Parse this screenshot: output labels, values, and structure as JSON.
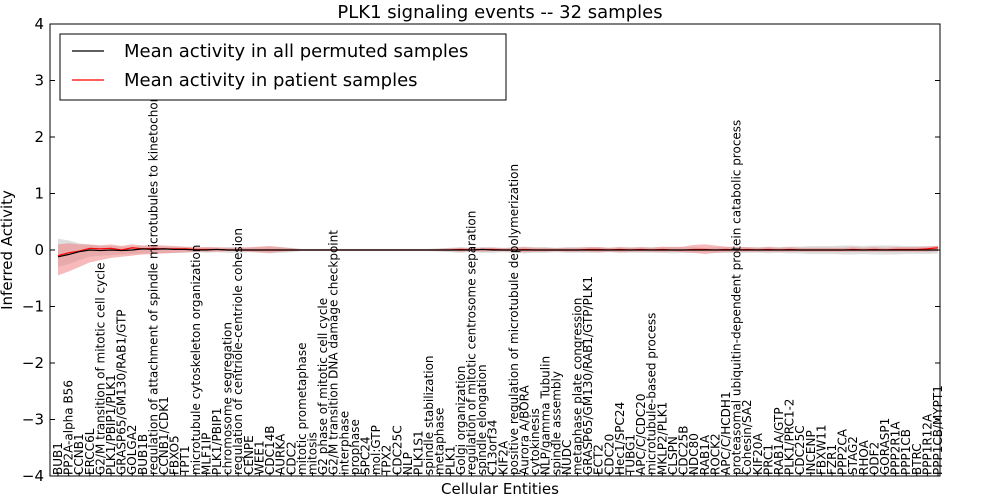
{
  "chart_data": {
    "type": "line",
    "title": "PLK1 signaling events -- 32 samples",
    "xlabel": "Cellular Entities",
    "ylabel": "Inferred Activity",
    "ylim": [
      -4,
      4
    ],
    "yticks": [
      "4",
      "3",
      "2",
      "1",
      "0",
      "−1",
      "−2",
      "−3",
      "−4"
    ],
    "ytick_values": [
      4,
      3,
      2,
      1,
      0,
      -1,
      -2,
      -3,
      -4
    ],
    "grid": false,
    "legend_position": "top-left",
    "categories": [
      "BUB1",
      "PP2A-alpha B56",
      "CCNB1",
      "ERCC6L",
      "G2/M transition of mitotic cell cycle",
      "PLK1/PBIP1/PLK1",
      "GRASP65/GM130/RAB1/GTP",
      "GOLGA2",
      "BUB1B",
      "regulation of attachment of spindle microtubules to kinetochore",
      "CCNB1/CDK1",
      "FBXO5",
      "TPT1",
      "microtubule cytoskeleton organization",
      "MLF1IP",
      "PLK1/PBIP1",
      "chromosome segregation",
      "regulation of centriole-centriole cohesion",
      "CENPE",
      "WEE1",
      "CDC14B",
      "AURKA",
      "CDC2",
      "mitotic prometaphase",
      "mitosis",
      "G2 phase of mitotic cell cycle",
      "G2/M transition DNA damage checkpoint",
      "interphase",
      "prophase",
      "SPC24",
      "mol:GTP",
      "TPX2",
      "CDC25C",
      "NLP",
      "PLK1S1",
      "spindle stabilization",
      "metaphase",
      "PLK1",
      "Golgi organization",
      "regulation of mitotic centrosome separation",
      "spindle elongation",
      "C13orf34",
      "KIF2A",
      "positive regulation of microtubule depolymerization",
      "Aurora A/BORA",
      "cytokinesis",
      "NLP/gamma Tubulin",
      "spindle assembly",
      "NUDC",
      "metaphase plate congression",
      "GRASP65/GM130/RAB1/GTP/PLK1",
      "ECT2",
      "CDC20",
      "Hec1/SPC24",
      "TUBG1",
      "APC/C/CDC20",
      "microtubule-based process",
      "MKLP2/PLK1",
      "CLSPN",
      "CDC25B",
      "NDC80",
      "RAB1A",
      "ROCK2",
      "APC/C/HCDH1",
      "proteasomal ubiquitin-dependent protein catabolic process",
      "Cohesin/SA2",
      "KIF20A",
      "PRC1",
      "RAB1A/GTP",
      "PLK1/PRC1-2",
      "CDC25C",
      "INCENP",
      "FBXW11",
      "FZR1",
      "PPP2CA",
      "STAG2",
      "RHOA",
      "ODF2",
      "GORASP1",
      "PPP2R1A",
      "PPP1CB",
      "BTRC",
      "PPP1R12A",
      "PPP1CB/MYPT1"
    ],
    "series": [
      {
        "name": "Mean activity in all permuted samples",
        "color": "#000000",
        "values": [
          -0.12,
          -0.08,
          -0.03,
          0.0,
          -0.01,
          0.0,
          -0.01,
          0.0,
          0.02,
          0.01,
          0.02,
          0.01,
          0.01,
          0.0,
          0.0,
          0.01,
          0.0,
          0.0,
          0.0,
          0.0,
          0.0,
          0.0,
          0.0,
          0.0,
          0.0,
          0.0,
          0.0,
          0.0,
          0.0,
          0.0,
          0.0,
          0.0,
          0.0,
          0.0,
          0.0,
          0.0,
          0.0,
          0.0,
          0.0,
          0.0,
          0.01,
          0.0,
          0.0,
          0.0,
          0.0,
          0.0,
          0.0,
          0.0,
          0.0,
          0.0,
          0.0,
          0.0,
          0.0,
          0.0,
          0.0,
          0.0,
          0.0,
          0.0,
          0.0,
          0.0,
          0.0,
          0.0,
          0.0,
          0.0,
          0.0,
          0.0,
          0.0,
          0.0,
          0.0,
          0.0,
          0.0,
          0.0,
          0.0,
          0.0,
          0.0,
          0.0,
          0.0,
          0.0,
          0.0,
          0.0,
          0.0,
          0.0,
          0.0,
          0.0
        ]
      },
      {
        "name": "Mean activity in patient samples",
        "color": "#ff0000",
        "values": [
          -0.1,
          -0.05,
          -0.02,
          0.03,
          0.02,
          0.03,
          0.0,
          0.04,
          0.02,
          0.03,
          0.02,
          0.02,
          0.02,
          0.01,
          0.01,
          0.01,
          0.0,
          0.0,
          0.0,
          0.0,
          0.0,
          0.0,
          0.0,
          0.0,
          0.0,
          0.0,
          0.0,
          0.0,
          0.0,
          0.0,
          0.0,
          0.0,
          0.0,
          0.0,
          0.0,
          0.0,
          0.0,
          0.0,
          0.01,
          0.0,
          0.01,
          0.01,
          0.0,
          0.0,
          0.01,
          0.0,
          0.0,
          0.0,
          0.0,
          0.0,
          0.01,
          0.01,
          0.0,
          0.01,
          0.0,
          0.01,
          0.0,
          0.01,
          0.0,
          0.0,
          0.01,
          0.01,
          0.0,
          0.01,
          0.0,
          0.01,
          0.0,
          0.01,
          0.0,
          0.01,
          0.0,
          0.0,
          0.0,
          0.0,
          0.0,
          0.01,
          0.0,
          0.01,
          0.0,
          0.01,
          0.01,
          0.01,
          0.02,
          0.04
        ]
      }
    ],
    "permuted_band": {
      "lower": [
        -0.3,
        -0.25,
        -0.18,
        -0.12,
        -0.1,
        -0.09,
        -0.08,
        -0.07,
        -0.06,
        -0.06,
        -0.06,
        -0.05,
        -0.05,
        -0.04,
        -0.05,
        -0.04,
        -0.05,
        -0.05,
        -0.04,
        -0.05,
        -0.06,
        -0.05,
        -0.04,
        -0.02,
        -0.02,
        -0.02,
        -0.02,
        -0.02,
        -0.02,
        -0.02,
        -0.02,
        -0.02,
        -0.02,
        -0.02,
        -0.02,
        -0.02,
        -0.03,
        -0.04,
        -0.05,
        -0.04,
        -0.05,
        -0.05,
        -0.04,
        -0.05,
        -0.06,
        -0.05,
        -0.05,
        -0.04,
        -0.05,
        -0.05,
        -0.05,
        -0.05,
        -0.04,
        -0.05,
        -0.05,
        -0.05,
        -0.05,
        -0.05,
        -0.06,
        -0.05,
        -0.05,
        -0.04,
        -0.05,
        -0.05,
        -0.06,
        -0.05,
        -0.05,
        -0.06,
        -0.05,
        -0.06,
        -0.06,
        -0.07,
        -0.07,
        -0.07,
        -0.08,
        -0.08,
        -0.07,
        -0.08,
        -0.08,
        -0.08,
        -0.07,
        -0.07,
        -0.07,
        -0.06
      ],
      "upper": [
        0.2,
        0.17,
        0.12,
        0.09,
        0.08,
        0.07,
        0.06,
        0.06,
        0.07,
        0.06,
        0.06,
        0.05,
        0.05,
        0.04,
        0.05,
        0.04,
        0.05,
        0.05,
        0.04,
        0.05,
        0.06,
        0.05,
        0.04,
        0.02,
        0.02,
        0.02,
        0.02,
        0.02,
        0.02,
        0.02,
        0.02,
        0.02,
        0.02,
        0.02,
        0.02,
        0.02,
        0.03,
        0.04,
        0.05,
        0.04,
        0.05,
        0.05,
        0.04,
        0.05,
        0.06,
        0.05,
        0.05,
        0.04,
        0.05,
        0.05,
        0.05,
        0.05,
        0.04,
        0.05,
        0.05,
        0.05,
        0.05,
        0.05,
        0.06,
        0.05,
        0.05,
        0.04,
        0.05,
        0.05,
        0.06,
        0.05,
        0.05,
        0.06,
        0.05,
        0.06,
        0.06,
        0.07,
        0.07,
        0.07,
        0.08,
        0.08,
        0.07,
        0.08,
        0.08,
        0.08,
        0.07,
        0.07,
        0.07,
        0.06
      ]
    },
    "patient_band": {
      "lower": [
        -0.45,
        -0.38,
        -0.3,
        -0.22,
        -0.18,
        -0.14,
        -0.12,
        -0.1,
        -0.08,
        -0.07,
        -0.06,
        -0.05,
        -0.04,
        -0.03,
        -0.03,
        -0.03,
        -0.02,
        -0.02,
        -0.03,
        -0.04,
        -0.05,
        -0.03,
        -0.02,
        -0.01,
        -0.01,
        -0.01,
        -0.01,
        -0.01,
        -0.01,
        -0.01,
        -0.01,
        -0.01,
        -0.01,
        -0.01,
        -0.01,
        -0.01,
        -0.01,
        -0.02,
        -0.03,
        -0.02,
        -0.03,
        -0.02,
        -0.02,
        -0.03,
        -0.04,
        -0.03,
        -0.03,
        -0.02,
        -0.03,
        -0.03,
        -0.03,
        -0.04,
        -0.03,
        -0.04,
        -0.03,
        -0.03,
        -0.03,
        -0.04,
        -0.03,
        -0.04,
        -0.05,
        -0.07,
        -0.05,
        -0.04,
        -0.03,
        -0.03,
        -0.03,
        -0.03,
        -0.03,
        -0.03,
        -0.03,
        -0.03,
        -0.03,
        -0.03,
        -0.03,
        -0.03,
        -0.03,
        -0.03,
        -0.03,
        -0.03,
        -0.03,
        -0.03,
        -0.03,
        -0.02
      ],
      "upper": [
        0.1,
        0.12,
        0.1,
        0.1,
        0.08,
        0.1,
        0.07,
        0.1,
        0.08,
        0.09,
        0.08,
        0.07,
        0.06,
        0.05,
        0.05,
        0.05,
        0.04,
        0.04,
        0.05,
        0.06,
        0.07,
        0.05,
        0.03,
        0.01,
        0.01,
        0.01,
        0.01,
        0.01,
        0.01,
        0.01,
        0.01,
        0.01,
        0.01,
        0.01,
        0.01,
        0.01,
        0.02,
        0.03,
        0.04,
        0.03,
        0.04,
        0.04,
        0.03,
        0.04,
        0.05,
        0.04,
        0.04,
        0.03,
        0.04,
        0.04,
        0.05,
        0.05,
        0.04,
        0.05,
        0.04,
        0.05,
        0.04,
        0.06,
        0.05,
        0.06,
        0.09,
        0.1,
        0.08,
        0.06,
        0.05,
        0.05,
        0.04,
        0.05,
        0.04,
        0.05,
        0.04,
        0.04,
        0.04,
        0.04,
        0.04,
        0.05,
        0.04,
        0.05,
        0.04,
        0.05,
        0.05,
        0.05,
        0.06,
        0.08
      ]
    }
  }
}
